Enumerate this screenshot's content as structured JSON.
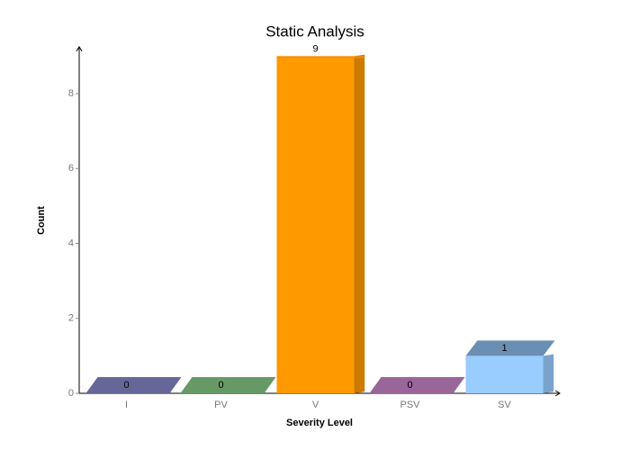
{
  "chart_data": {
    "type": "bar",
    "title": "Static Analysis",
    "x_label": "Severity Level",
    "y_label": "Count",
    "categories": [
      "I",
      "PV",
      "V",
      "PSV",
      "SV"
    ],
    "values": [
      0,
      0,
      9,
      0,
      1
    ],
    "colors": [
      "#666699",
      "#669966",
      "#ff9900",
      "#996699",
      "#99ccff"
    ],
    "ylim": [
      0,
      9.25
    ],
    "yticks": [
      0,
      2,
      4,
      6,
      8
    ]
  }
}
